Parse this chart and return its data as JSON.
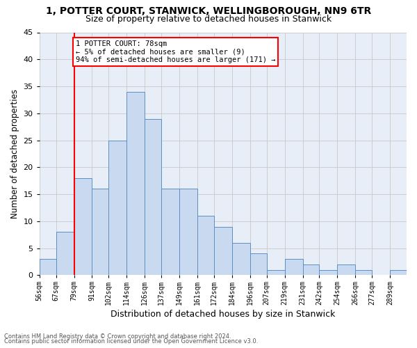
{
  "title1": "1, POTTER COURT, STANWICK, WELLINGBOROUGH, NN9 6TR",
  "title2": "Size of property relative to detached houses in Stanwick",
  "xlabel": "Distribution of detached houses by size in Stanwick",
  "ylabel": "Number of detached properties",
  "footer1": "Contains HM Land Registry data © Crown copyright and database right 2024.",
  "footer2": "Contains public sector information licensed under the Open Government Licence v3.0.",
  "bin_labels": [
    "56sqm",
    "67sqm",
    "79sqm",
    "91sqm",
    "102sqm",
    "114sqm",
    "126sqm",
    "137sqm",
    "149sqm",
    "161sqm",
    "172sqm",
    "184sqm",
    "196sqm",
    "207sqm",
    "219sqm",
    "231sqm",
    "242sqm",
    "254sqm",
    "266sqm",
    "277sqm",
    "289sqm"
  ],
  "bar_heights": [
    3,
    8,
    18,
    16,
    25,
    34,
    29,
    16,
    16,
    11,
    9,
    6,
    4,
    1,
    3,
    2,
    1,
    2,
    1,
    0,
    1
  ],
  "bar_color": "#c8d9f0",
  "bar_edge_color": "#5b8ec4",
  "bin_edges": [
    56,
    67,
    79,
    91,
    102,
    114,
    126,
    137,
    149,
    161,
    172,
    184,
    196,
    207,
    219,
    231,
    242,
    254,
    266,
    277,
    289,
    300
  ],
  "annotation_line1": "1 POTTER COURT: 78sqm",
  "annotation_line2": "← 5% of detached houses are smaller (9)",
  "annotation_line3": "94% of semi-detached houses are larger (171) →",
  "annotation_box_color": "white",
  "annotation_box_edge_color": "red",
  "vline_color": "red",
  "ylim": [
    0,
    45
  ],
  "yticks": [
    0,
    5,
    10,
    15,
    20,
    25,
    30,
    35,
    40,
    45
  ],
  "grid_color": "#c8c8c8",
  "bg_color": "#e8eef8",
  "title1_fontsize": 10,
  "title2_fontsize": 9
}
